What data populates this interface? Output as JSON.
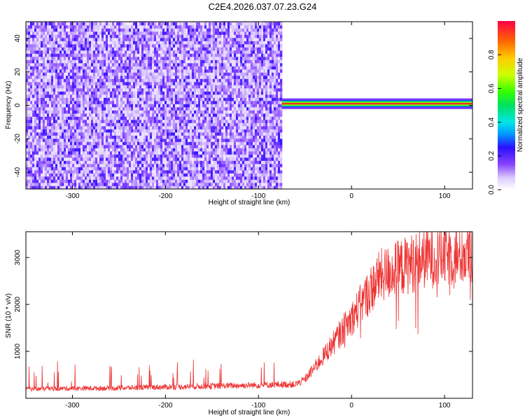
{
  "title": "C2E4.2026.037.07.23.G24",
  "chart_data": [
    {
      "type": "heatmap",
      "xlabel": "Height of straight line (km)",
      "ylabel": "Frequency (Hz)",
      "xlim": [
        -350,
        130
      ],
      "ylim": [
        -50,
        50
      ],
      "xticks": [
        -300,
        -200,
        -100,
        0,
        100
      ],
      "yticks": [
        -40,
        -20,
        0,
        20,
        40
      ],
      "colorbar": {
        "label": "Normalized spectral amplitude",
        "ticks": [
          0.0,
          0.2,
          0.4,
          0.6,
          0.8
        ],
        "tick_labels": [
          "0.0",
          "0.2",
          "0.4",
          "0.6",
          "0.8"
        ],
        "range": [
          0,
          1
        ]
      },
      "regions": [
        {
          "name": "broadband noise",
          "x_range": [
            -350,
            -75
          ],
          "amplitude": [
            0.0,
            0.25
          ]
        },
        {
          "name": "narrowband signal",
          "x_range": [
            -75,
            130
          ],
          "frequency_hz": 1,
          "amplitude": [
            0.6,
            1.0
          ]
        }
      ]
    },
    {
      "type": "line",
      "xlabel": "Height of straight line (km)",
      "ylabel": "SNR (10 * v/v)",
      "xlim": [
        -350,
        130
      ],
      "ylim": [
        0,
        3550
      ],
      "xticks": [
        -300,
        -200,
        -100,
        0,
        100
      ],
      "yticks": [
        1000,
        2000,
        3000
      ],
      "color": "#ee3333",
      "trend": {
        "x": [
          -350,
          -250,
          -150,
          -60,
          -50,
          -30,
          0,
          30,
          80,
          130
        ],
        "y": [
          200,
          220,
          260,
          300,
          400,
          900,
          1700,
          2600,
          3000,
          3100
        ]
      }
    }
  ]
}
